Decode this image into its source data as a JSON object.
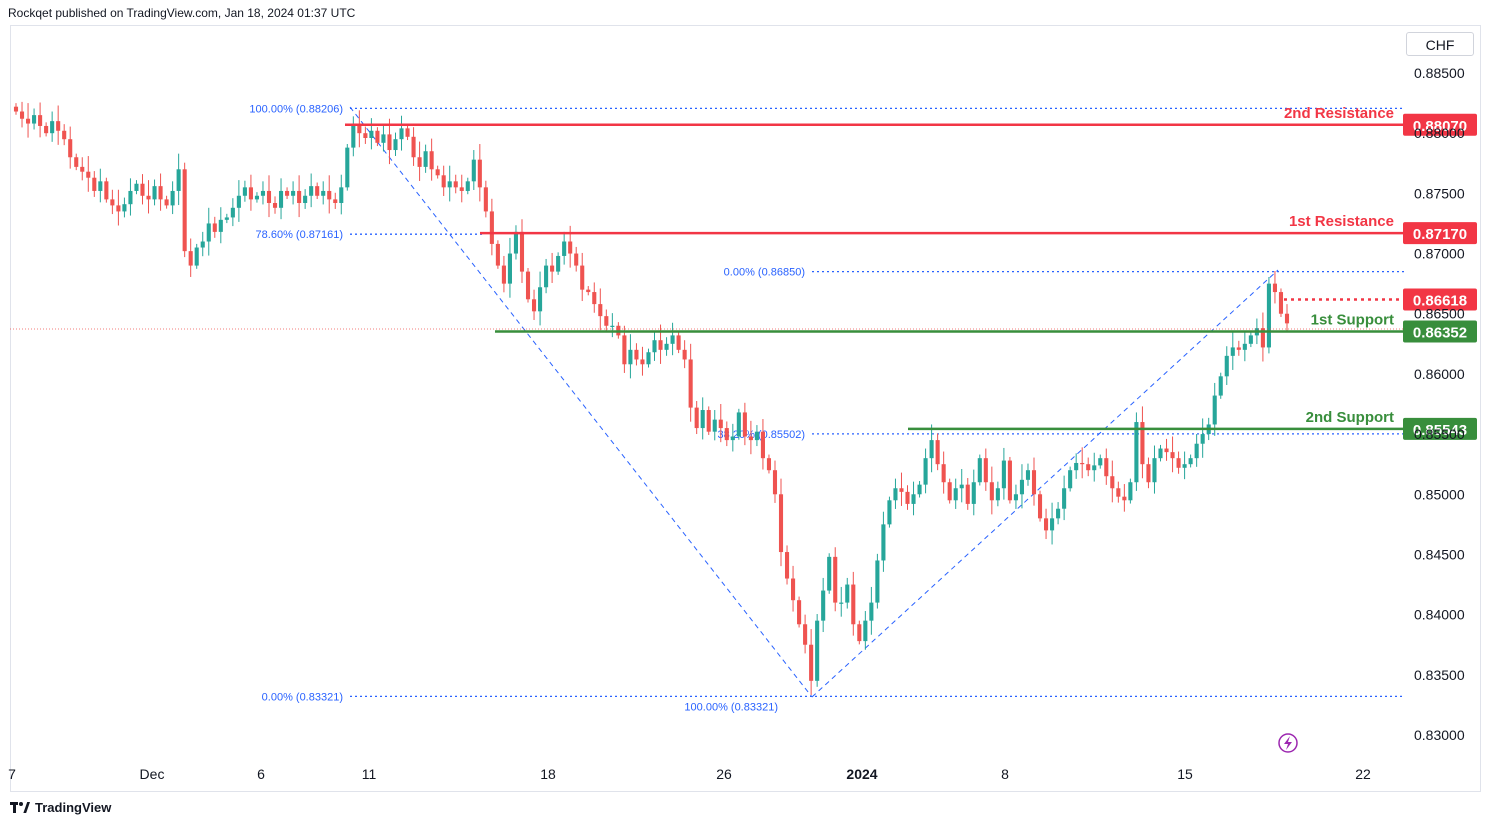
{
  "header": {
    "attribution": "Rockqet published on TradingView.com, Jan 18, 2024 01:37 UTC"
  },
  "currency": "CHF",
  "footer": {
    "brand": "TradingView",
    "logo": "tradingview-logo-icon"
  },
  "lightning_icon": "lightning-icon",
  "colors": {
    "up": "#26a69a",
    "down": "#ef5350",
    "resistance": "#f23645",
    "support": "#388e3c",
    "fib": "#2962ff"
  },
  "chart_data": {
    "type": "candlestick",
    "symbol_currency": "CHF",
    "y_axis_ticks": [
      "0.88500",
      "0.88000",
      "0.87500",
      "0.87000",
      "0.86500",
      "0.86000",
      "0.85500",
      "0.85000",
      "0.84500",
      "0.84000",
      "0.83500",
      "0.83000"
    ],
    "x_axis_ticks": [
      "7",
      "Dec",
      "6",
      "11",
      "18",
      "26",
      "2024",
      "8",
      "15",
      "22"
    ],
    "ylim": [
      0.8292,
      0.888
    ],
    "levels": [
      {
        "label": "2nd Resistance",
        "value": "0.88070",
        "kind": "resistance"
      },
      {
        "label": "1st Resistance",
        "value": "0.87170",
        "kind": "resistance"
      },
      {
        "label": "1st Support",
        "value": "0.86352",
        "kind": "support"
      },
      {
        "label": "2nd Support",
        "value": "0.85543",
        "kind": "support"
      }
    ],
    "current_price": "0.86618",
    "fib_labels": [
      {
        "text": "100.00% (0.88206)",
        "price": 0.88206
      },
      {
        "text": "78.60% (0.87161)",
        "price": 0.87161
      },
      {
        "text": "0.00% (0.83321)",
        "price": 0.83321
      },
      {
        "text": "0.00% (0.86850)",
        "price": 0.8685
      },
      {
        "text": "38.20% (0.85502)",
        "price": 0.85502
      },
      {
        "text": "100.00% (0.83321)",
        "price": 0.83321
      }
    ],
    "closes": [
      0.8818,
      0.8812,
      0.8808,
      0.8815,
      0.8806,
      0.88,
      0.881,
      0.8802,
      0.8795,
      0.878,
      0.8772,
      0.8768,
      0.8763,
      0.8752,
      0.876,
      0.8745,
      0.874,
      0.8735,
      0.8741,
      0.8752,
      0.8758,
      0.8748,
      0.8745,
      0.8756,
      0.8745,
      0.874,
      0.8752,
      0.877,
      0.8702,
      0.869,
      0.8705,
      0.871,
      0.8725,
      0.8718,
      0.8728,
      0.873,
      0.8738,
      0.8748,
      0.8755,
      0.8745,
      0.8748,
      0.8752,
      0.8742,
      0.8738,
      0.8752,
      0.8748,
      0.8752,
      0.8742,
      0.8748,
      0.8756,
      0.8748,
      0.8752,
      0.8745,
      0.8742,
      0.8755,
      0.8788,
      0.8806,
      0.88,
      0.8796,
      0.8802,
      0.8792,
      0.8799,
      0.8786,
      0.8795,
      0.8804,
      0.8797,
      0.878,
      0.8772,
      0.8785,
      0.877,
      0.8765,
      0.8755,
      0.876,
      0.8755,
      0.8752,
      0.876,
      0.8778,
      0.8755,
      0.8735,
      0.8708,
      0.869,
      0.8675,
      0.87,
      0.8718,
      0.8685,
      0.8662,
      0.8652,
      0.8672,
      0.869,
      0.8685,
      0.8698,
      0.871,
      0.87,
      0.869,
      0.867,
      0.8668,
      0.8658,
      0.8648,
      0.864,
      0.864,
      0.8632,
      0.8608,
      0.862,
      0.8612,
      0.8608,
      0.8618,
      0.8628,
      0.862,
      0.8625,
      0.8632,
      0.862,
      0.8612,
      0.8572,
      0.8555,
      0.857,
      0.8552,
      0.8562,
      0.8555,
      0.8545,
      0.8548,
      0.8568,
      0.8548,
      0.8545,
      0.8552,
      0.853,
      0.852,
      0.85,
      0.8452,
      0.843,
      0.8412,
      0.8392,
      0.8375,
      0.8345,
      0.8395,
      0.842,
      0.8448,
      0.841,
      0.841,
      0.8425,
      0.8392,
      0.8378,
      0.8395,
      0.841,
      0.8445,
      0.8475,
      0.8495,
      0.8505,
      0.8502,
      0.8492,
      0.85,
      0.8508,
      0.853,
      0.8545,
      0.8525,
      0.851,
      0.8495,
      0.8505,
      0.8508,
      0.8492,
      0.851,
      0.853,
      0.851,
      0.8495,
      0.8505,
      0.8528,
      0.8495,
      0.85,
      0.8512,
      0.852,
      0.85,
      0.848,
      0.847,
      0.848,
      0.8488,
      0.8505,
      0.852,
      0.8526,
      0.8525,
      0.852,
      0.8524,
      0.853,
      0.8515,
      0.8505,
      0.8498,
      0.8495,
      0.851,
      0.856,
      0.8525,
      0.851,
      0.853,
      0.8538,
      0.8535,
      0.853,
      0.8522,
      0.8525,
      0.853,
      0.8542,
      0.855,
      0.8558,
      0.8582,
      0.8598,
      0.8615,
      0.8622,
      0.862,
      0.8625,
      0.8632,
      0.8638,
      0.8622,
      0.8675,
      0.8668,
      0.865,
      0.8642
    ],
    "time_range": "Nov 2023 – Jan 18, 2024"
  }
}
